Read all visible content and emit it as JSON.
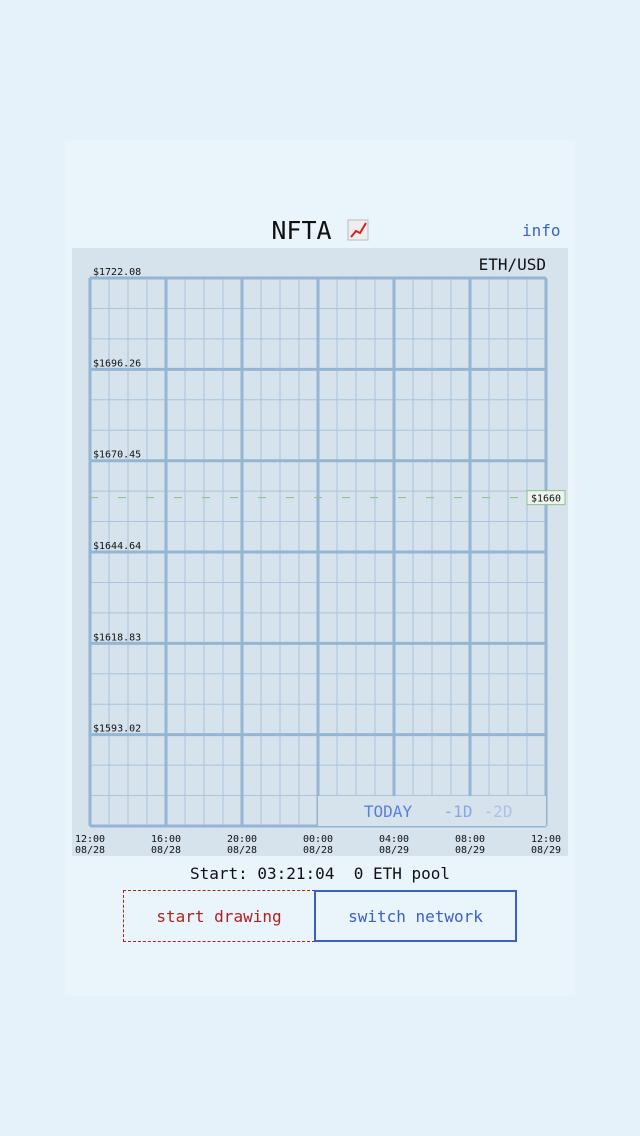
{
  "header": {
    "title": "NFTA",
    "info": "info"
  },
  "chart": {
    "pair": "ETH/USD",
    "ylim": [
      1567.21,
      1722.08
    ],
    "yticks": [
      {
        "value": 1722.08,
        "label": "$1722.08"
      },
      {
        "value": 1696.26,
        "label": "$1696.26"
      },
      {
        "value": 1670.45,
        "label": "$1670.45"
      },
      {
        "value": 1644.64,
        "label": "$1644.64"
      },
      {
        "value": 1618.83,
        "label": "$1618.83"
      },
      {
        "value": 1593.02,
        "label": "$1593.02"
      }
    ],
    "price": {
      "value": 1660,
      "label": "$1660"
    },
    "xticks": [
      {
        "time": "12:00",
        "date": "08/28"
      },
      {
        "time": "16:00",
        "date": "08/28"
      },
      {
        "time": "20:00",
        "date": "08/28"
      },
      {
        "time": "00:00",
        "date": "08/28"
      },
      {
        "time": "04:00",
        "date": "08/29"
      },
      {
        "time": "08:00",
        "date": "08/29"
      },
      {
        "time": "12:00",
        "date": "08/29"
      }
    ],
    "ranges": [
      "TODAY",
      "-1D",
      "-2D"
    ]
  },
  "status": {
    "start": "Start: 03:21:04",
    "pool": "0 ETH pool"
  },
  "buttons": [
    "start drawing",
    "switch network"
  ]
}
